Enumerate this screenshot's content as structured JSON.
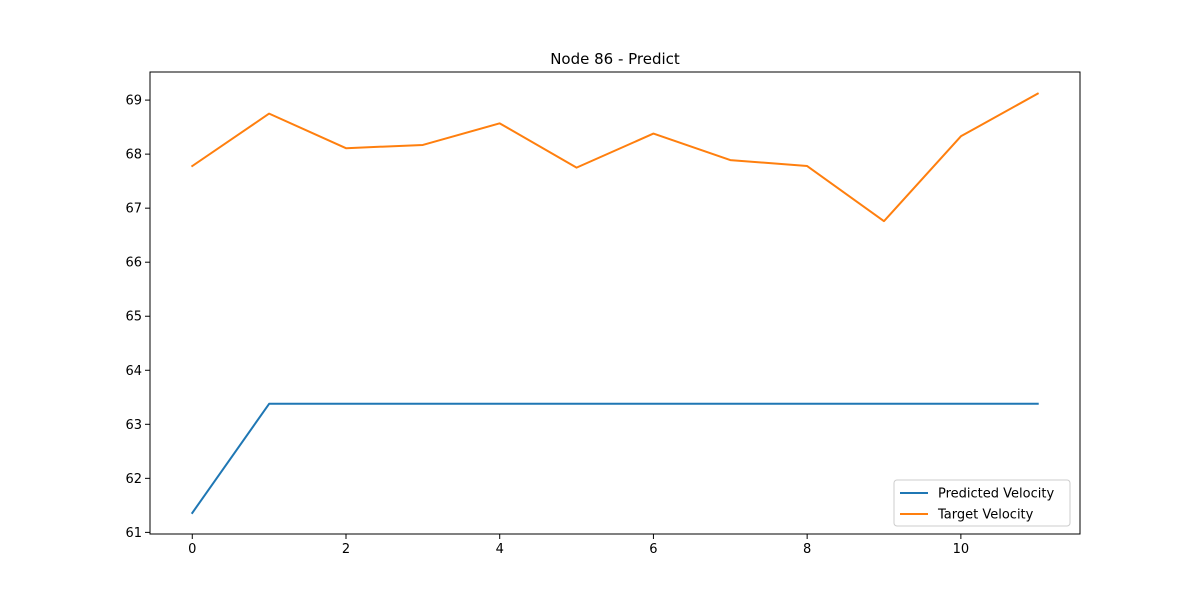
{
  "chart_data": {
    "type": "line",
    "title": "Node 86 - Predict",
    "xlabel": "",
    "ylabel": "",
    "x": [
      0,
      1,
      2,
      3,
      4,
      5,
      6,
      7,
      8,
      9,
      10,
      11
    ],
    "xlim": [
      -0.55,
      11.55
    ],
    "ylim": [
      60.97,
      69.52
    ],
    "xticks": [
      0,
      2,
      4,
      6,
      8,
      10
    ],
    "yticks": [
      61,
      62,
      63,
      64,
      65,
      66,
      67,
      68,
      69
    ],
    "grid": false,
    "legend_position": "lower-right",
    "series": [
      {
        "name": "Predicted Velocity",
        "color": "#1f77b4",
        "values": [
          61.36,
          63.38,
          63.38,
          63.38,
          63.38,
          63.38,
          63.38,
          63.38,
          63.38,
          63.38,
          63.38,
          63.38
        ]
      },
      {
        "name": "Target Velocity",
        "color": "#ff7f0e",
        "values": [
          67.78,
          68.75,
          68.11,
          68.17,
          68.57,
          67.75,
          68.38,
          67.89,
          67.78,
          66.76,
          68.33,
          69.12
        ]
      }
    ]
  }
}
